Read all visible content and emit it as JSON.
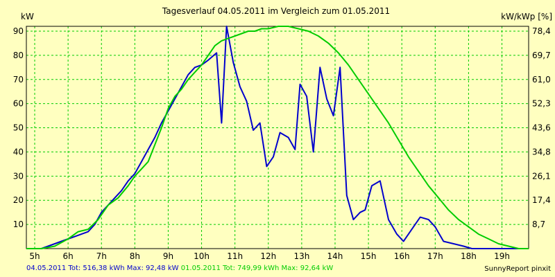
{
  "chart_data": {
    "type": "line",
    "title": "Tagesverlauf 04.05.2011 im Vergleich zum 01.05.2011",
    "ylabel_left": "kW",
    "ylabel_right": "kW/kWp [%]",
    "xlim": [
      4.75,
      19.8
    ],
    "ylim": [
      0,
      92
    ],
    "x_ticks": [
      5,
      6,
      7,
      8,
      9,
      10,
      11,
      12,
      13,
      14,
      15,
      16,
      17,
      18,
      19
    ],
    "x_tick_labels": [
      "5h",
      "6h",
      "7h",
      "8h",
      "9h",
      "10h",
      "11h",
      "12h",
      "13h",
      "14h",
      "15h",
      "16h",
      "17h",
      "18h",
      "19h"
    ],
    "y_ticks": [
      10,
      20,
      30,
      40,
      50,
      60,
      70,
      80,
      90
    ],
    "y_right_ticks": [
      10,
      20,
      30,
      40,
      50,
      60,
      70,
      80,
      90
    ],
    "y_right_tick_labels": [
      "8,7",
      "17,4",
      "26,1",
      "34,8",
      "43,6",
      "52,3",
      "61,0",
      "69,7",
      "78,4"
    ],
    "grid": true,
    "series": [
      {
        "name": "04.05.2011",
        "color": "#0000cc",
        "x": [
          4.75,
          5.2,
          5.4,
          5.6,
          5.8,
          6.0,
          6.2,
          6.4,
          6.6,
          6.8,
          7.0,
          7.2,
          7.4,
          7.6,
          7.8,
          8.0,
          8.2,
          8.4,
          8.6,
          8.8,
          9.0,
          9.2,
          9.4,
          9.6,
          9.8,
          10.0,
          10.2,
          10.45,
          10.6,
          10.75,
          10.95,
          11.15,
          11.35,
          11.55,
          11.75,
          11.95,
          12.15,
          12.35,
          12.6,
          12.8,
          12.95,
          13.15,
          13.35,
          13.55,
          13.75,
          13.95,
          14.15,
          14.35,
          14.55,
          14.75,
          14.9,
          15.1,
          15.35,
          15.6,
          15.85,
          16.05,
          16.3,
          16.55,
          16.8,
          17.0,
          17.25,
          17.55,
          17.85,
          18.1,
          18.3,
          18.5,
          18.75,
          19.0,
          19.3,
          19.8
        ],
        "y": [
          0,
          0,
          1,
          2,
          3,
          4,
          5,
          6,
          7,
          10,
          15,
          18,
          21,
          24,
          28,
          31,
          36,
          41,
          46,
          52,
          57,
          62,
          67,
          72,
          75,
          76,
          78,
          81,
          52,
          92,
          77,
          67,
          61,
          49,
          52,
          34,
          38,
          48,
          46,
          41,
          68,
          63,
          40,
          75,
          62,
          55,
          75,
          22,
          12,
          15,
          16,
          26,
          28,
          12,
          6,
          3,
          8,
          13,
          12,
          9,
          3,
          2,
          1,
          0,
          0,
          0,
          0,
          0,
          0,
          0
        ]
      },
      {
        "name": "01.05.2011",
        "color": "#00cc00",
        "x": [
          4.75,
          5.2,
          5.6,
          6.0,
          6.3,
          6.6,
          6.9,
          7.2,
          7.5,
          7.8,
          8.0,
          8.2,
          8.4,
          8.6,
          8.8,
          9.0,
          9.2,
          9.4,
          9.6,
          9.8,
          10.0,
          10.2,
          10.4,
          10.6,
          10.8,
          11.0,
          11.2,
          11.4,
          11.6,
          11.8,
          12.0,
          12.3,
          12.6,
          12.9,
          13.2,
          13.5,
          13.8,
          14.1,
          14.4,
          14.7,
          15.0,
          15.3,
          15.6,
          15.9,
          16.2,
          16.5,
          16.8,
          17.1,
          17.4,
          17.7,
          18.0,
          18.3,
          18.6,
          18.9,
          19.2,
          19.5,
          19.8
        ],
        "y": [
          0,
          0,
          1,
          4,
          7,
          8,
          12,
          18,
          21,
          26,
          30,
          33,
          36,
          43,
          50,
          58,
          63,
          66,
          70,
          73,
          76,
          80,
          84,
          86,
          87,
          88,
          89,
          90,
          90,
          91,
          91,
          92,
          92,
          91,
          90,
          88,
          85,
          81,
          76,
          70,
          64,
          58,
          52,
          45,
          38,
          32,
          26,
          21,
          16,
          12,
          9,
          6,
          4,
          2,
          1,
          0,
          0
        ]
      }
    ]
  },
  "footer": {
    "line1_a": "04.05.2011 Tot: 516,38 kWh Max: 92,48 kW",
    "line1_b": "01.05.2011 Tot: 749,99 kWh Max: 92,64 kW",
    "credit": "SunnyReport pinxit"
  },
  "colors": {
    "background": "#ffffc0",
    "grid": "#00cc00",
    "series1": "#0000cc",
    "series2": "#00cc00"
  }
}
